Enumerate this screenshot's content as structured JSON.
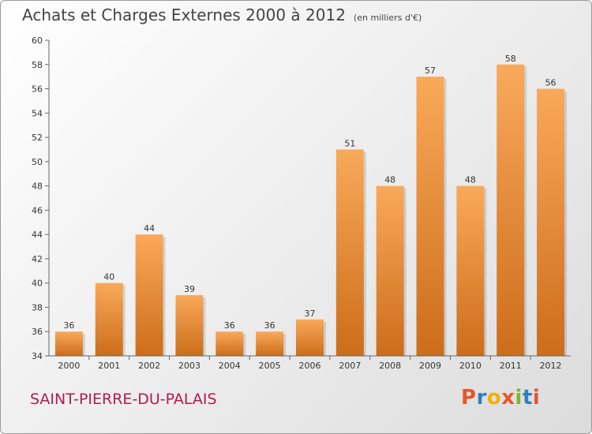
{
  "header": {
    "title": "Achats et Charges Externes 2000 à 2012",
    "unit": "(en milliers d'€)"
  },
  "footer": {
    "commune": "SAINT-PIERRE-DU-PALAIS",
    "logo_text": "Proxiti",
    "logo_colors": [
      "#e8552b",
      "#2f7fc1",
      "#f1b100",
      "#e8552b",
      "#7bb82c",
      "#2f7fc1",
      "#e8552b"
    ]
  },
  "colors": {
    "bar_light": "#f9a95a",
    "bar_dark": "#cc6d1a",
    "commune": "#b01b53"
  },
  "chart_data": {
    "type": "bar",
    "title": "Achats et Charges Externes 2000 à 2012",
    "categories": [
      "2000",
      "2001",
      "2002",
      "2003",
      "2004",
      "2005",
      "2006",
      "2007",
      "2008",
      "2009",
      "2010",
      "2011",
      "2012"
    ],
    "values": [
      36,
      40,
      44,
      39,
      36,
      36,
      37,
      51,
      48,
      57,
      48,
      58,
      56
    ],
    "ylim": [
      34,
      60
    ],
    "yticks": [
      34,
      36,
      38,
      40,
      42,
      44,
      46,
      48,
      50,
      52,
      54,
      56,
      58,
      60
    ],
    "grid": false,
    "data_labels": true
  }
}
